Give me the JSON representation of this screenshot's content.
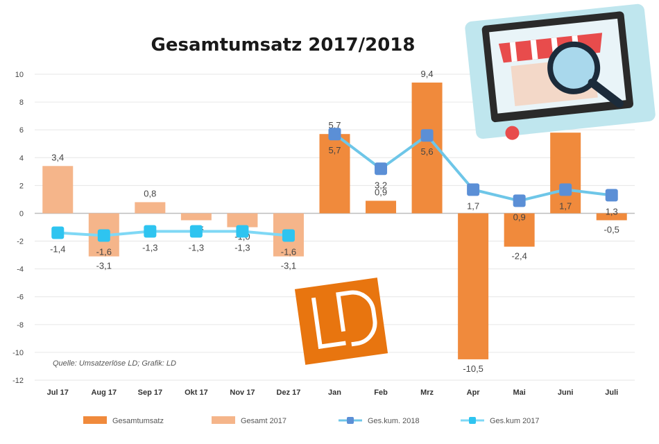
{
  "chart_data": {
    "type": "bar",
    "title": "Gesamtumsatz 2017/2018",
    "categories": [
      "Jul 17",
      "Aug 17",
      "Sep 17",
      "Okt 17",
      "Nov 17",
      "Dez 17",
      "Jan",
      "Feb",
      "Mrz",
      "Apr",
      "Mai",
      "Juni",
      "Juli"
    ],
    "ylim": [
      -12,
      10
    ],
    "yticks": [
      10,
      8,
      6,
      4,
      2,
      0,
      -2,
      -4,
      -6,
      -8,
      -10,
      -12
    ],
    "series": [
      {
        "name": "Gesamtumsatz",
        "kind": "bar",
        "color": "#f08a3c",
        "values": [
          null,
          null,
          null,
          null,
          null,
          null,
          5.7,
          0.9,
          9.4,
          -10.5,
          -2.4,
          5.8,
          -0.5
        ]
      },
      {
        "name": "Gesamt 2017",
        "kind": "bar",
        "color": "#f5b58a",
        "values": [
          3.4,
          -3.1,
          0.8,
          -0.5,
          -1.0,
          -3.1,
          null,
          null,
          null,
          null,
          null,
          null,
          null
        ]
      },
      {
        "name": "Ges.kum. 2018",
        "kind": "line",
        "color": "#5b8fd6",
        "line_color": "#6ec6e8",
        "values": [
          null,
          null,
          null,
          null,
          null,
          null,
          5.7,
          3.2,
          5.6,
          1.7,
          0.9,
          1.7,
          1.3
        ]
      },
      {
        "name": "Ges.kum 2017",
        "kind": "line",
        "color": "#2ec4f0",
        "line_color": "#7fd8f5",
        "values": [
          -1.4,
          -1.6,
          -1.3,
          -1.3,
          -1.3,
          -1.6,
          null,
          null,
          null,
          null,
          null,
          null,
          null
        ]
      }
    ],
    "labels": {
      "bars": [
        "3,4",
        "-3,1",
        "0,8",
        "-0,5",
        "-1,0",
        "-3,1",
        "5,7",
        "0,9",
        "9,4",
        "-10,5",
        "-2,4",
        "5,8",
        "-0,5"
      ],
      "line2018": [
        null,
        null,
        null,
        null,
        null,
        null,
        "5,7",
        "3,2",
        "5,6",
        "1,7",
        "0,9",
        "1,7",
        "1,3"
      ],
      "line2017": [
        "-1,4",
        "-1,6",
        "-1,3",
        "-1,3",
        "-1,3",
        "-1,6",
        null,
        null,
        null,
        null,
        null,
        null,
        null
      ]
    },
    "legend_position": "bottom",
    "grid": true,
    "source": "Quelle: Umsatzerlöse LD; Grafik: LD"
  },
  "logo": {
    "text": "LD",
    "color": "#e8750f"
  },
  "icons": {
    "corner_graphic": "shop-magnifier-icon"
  }
}
